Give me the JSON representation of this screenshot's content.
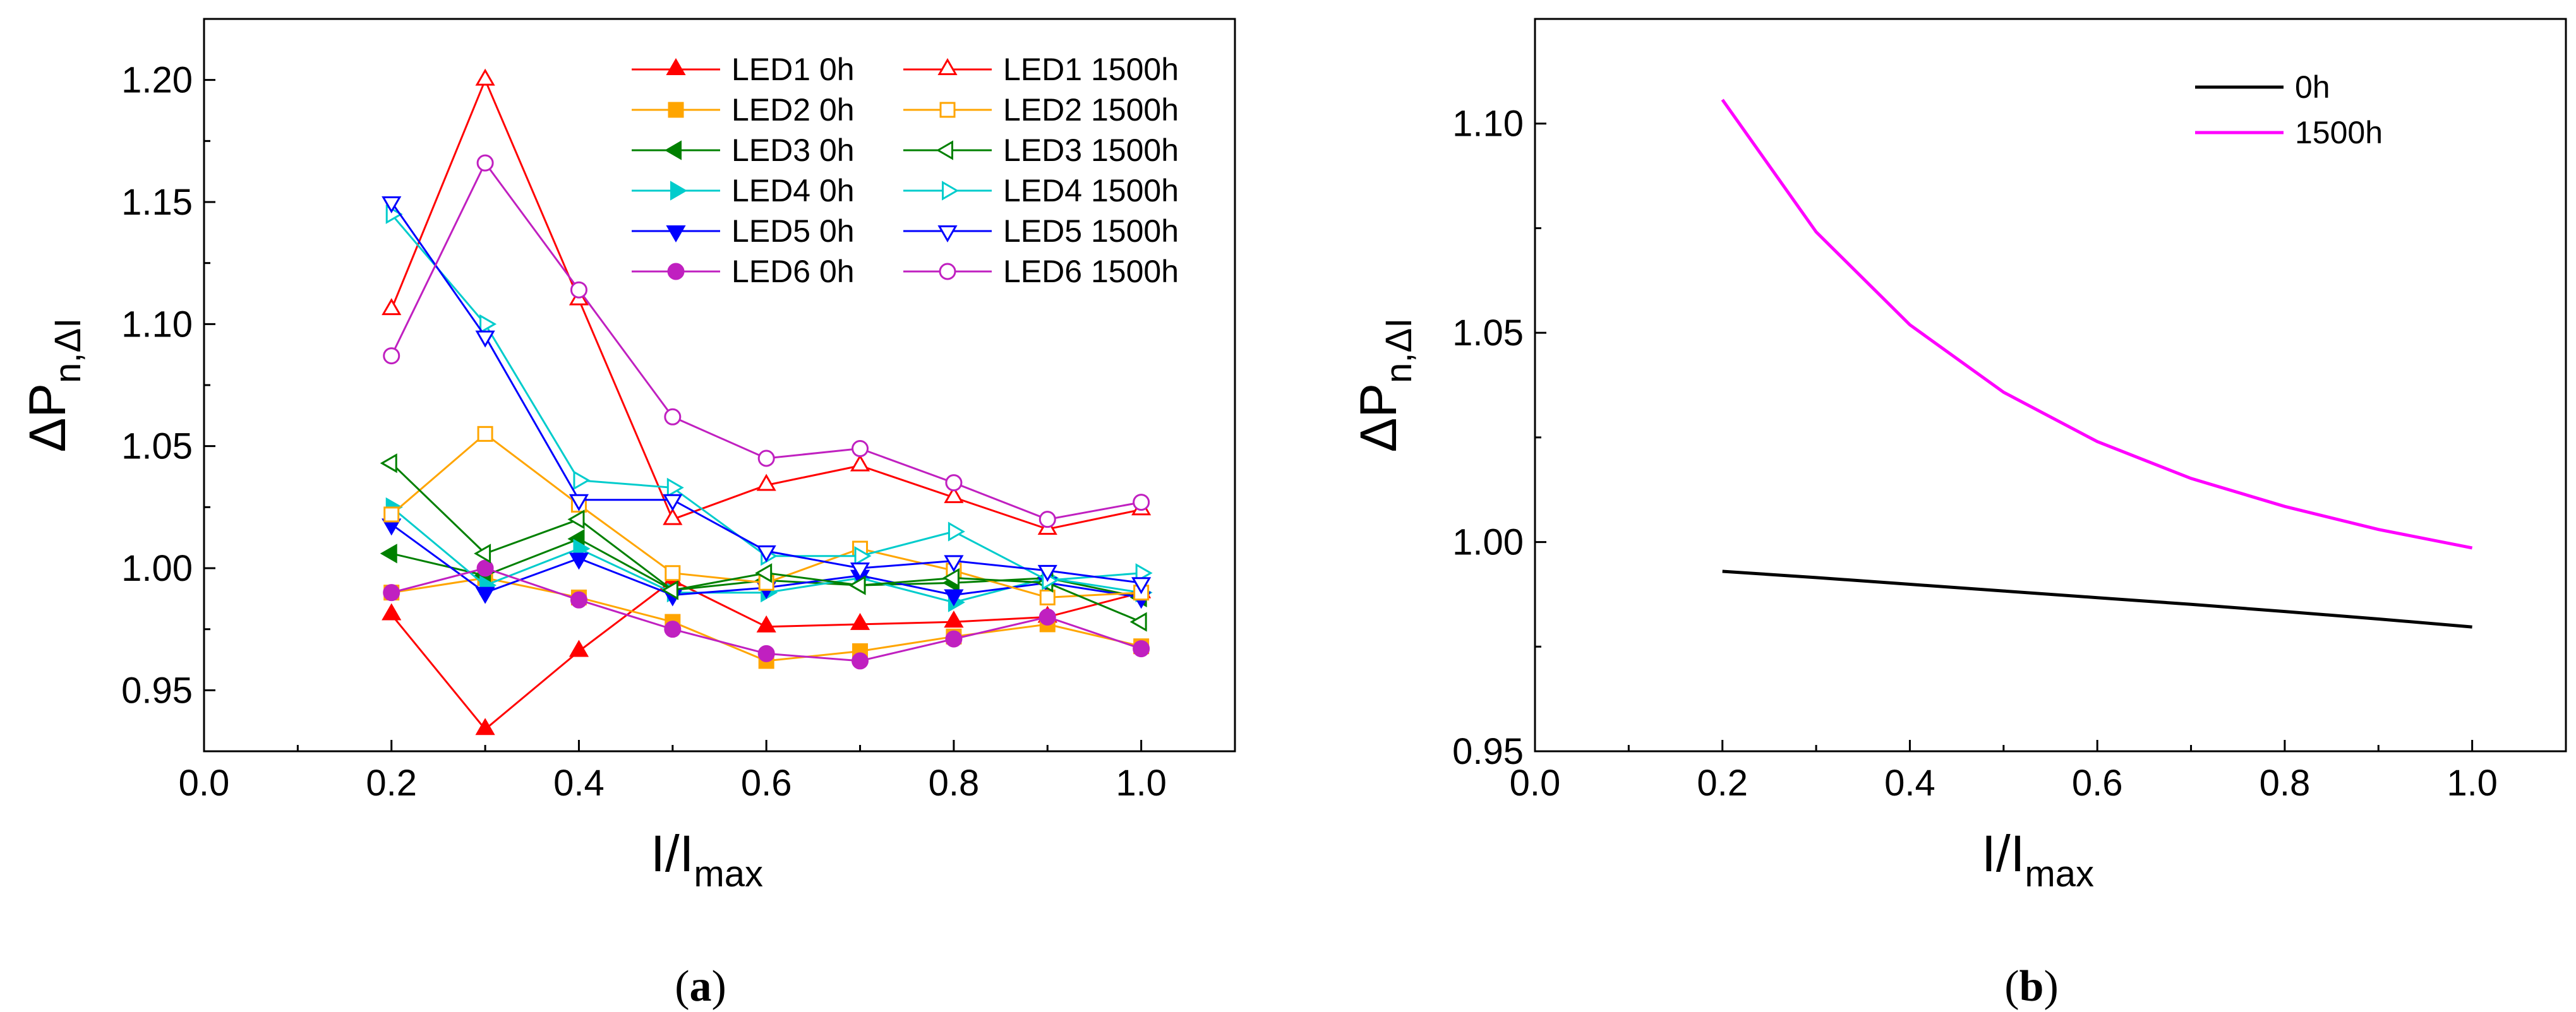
{
  "chart_data": [
    {
      "panel": "a",
      "type": "line",
      "caption": {
        "open": "(",
        "letter": "a",
        "close": ")"
      },
      "xlabel": {
        "main": "I/I",
        "sub": "max"
      },
      "ylabel": {
        "main": "ΔP",
        "sub": "n,ΔI"
      },
      "xlim": [
        0.0,
        1.1
      ],
      "ylim": [
        0.925,
        1.225
      ],
      "xticks": [
        0.0,
        0.2,
        0.4,
        0.6,
        0.8,
        1.0
      ],
      "xtick_labels": [
        "0.0",
        "0.2",
        "0.4",
        "0.6",
        "0.8",
        "1.0"
      ],
      "yticks": [
        0.95,
        1.0,
        1.05,
        1.1,
        1.15,
        1.2
      ],
      "ytick_labels": [
        "0.95",
        "1.00",
        "1.05",
        "1.10",
        "1.15",
        "1.20"
      ],
      "grid": false,
      "legend_position": "top-right",
      "x": [
        0.2,
        0.3,
        0.4,
        0.5,
        0.6,
        0.7,
        0.8,
        0.9,
        1.0
      ],
      "series": [
        {
          "name": "LED1 0h",
          "color": "#ff0000",
          "marker": "triangle-up",
          "filled": true,
          "values": [
            0.981,
            0.934,
            0.966,
            0.995,
            0.976,
            0.977,
            0.978,
            0.98,
            0.99
          ]
        },
        {
          "name": "LED2 0h",
          "color": "#ffa500",
          "marker": "square",
          "filled": true,
          "values": [
            0.99,
            0.996,
            0.988,
            0.978,
            0.962,
            0.966,
            0.972,
            0.977,
            0.968
          ]
        },
        {
          "name": "LED3 0h",
          "color": "#008000",
          "marker": "triangle-left",
          "filled": true,
          "values": [
            1.006,
            0.997,
            1.012,
            0.991,
            0.995,
            0.993,
            0.994,
            0.996,
            0.988
          ]
        },
        {
          "name": "LED4 0h",
          "color": "#00cccc",
          "marker": "triangle-right",
          "filled": true,
          "values": [
            1.025,
            0.993,
            1.008,
            0.99,
            0.99,
            0.996,
            0.986,
            0.996,
            0.99
          ]
        },
        {
          "name": "LED5 0h",
          "color": "#0000ff",
          "marker": "triangle-down",
          "filled": true,
          "values": [
            1.018,
            0.99,
            1.004,
            0.989,
            0.992,
            0.997,
            0.989,
            0.994,
            0.988
          ]
        },
        {
          "name": "LED6 0h",
          "color": "#c020c0",
          "marker": "circle",
          "filled": true,
          "values": [
            0.99,
            1.0,
            0.987,
            0.975,
            0.965,
            0.962,
            0.971,
            0.98,
            0.967
          ]
        },
        {
          "name": "LED1 1500h",
          "color": "#ff0000",
          "marker": "triangle-up",
          "filled": false,
          "values": [
            1.106,
            1.2,
            1.11,
            1.02,
            1.034,
            1.042,
            1.029,
            1.016,
            1.024
          ]
        },
        {
          "name": "LED2 1500h",
          "color": "#ffa500",
          "marker": "square",
          "filled": false,
          "values": [
            1.022,
            1.055,
            1.026,
            0.998,
            0.994,
            1.008,
            0.999,
            0.988,
            0.99
          ]
        },
        {
          "name": "LED3 1500h",
          "color": "#008000",
          "marker": "triangle-left",
          "filled": false,
          "values": [
            1.043,
            1.006,
            1.02,
            0.991,
            0.998,
            0.993,
            0.996,
            0.994,
            0.978
          ]
        },
        {
          "name": "LED4 1500h",
          "color": "#00cccc",
          "marker": "triangle-right",
          "filled": false,
          "values": [
            1.145,
            1.1,
            1.036,
            1.033,
            1.005,
            1.005,
            1.015,
            0.995,
            0.998
          ]
        },
        {
          "name": "LED5 1500h",
          "color": "#0000ff",
          "marker": "triangle-down",
          "filled": false,
          "values": [
            1.15,
            1.095,
            1.028,
            1.028,
            1.007,
            1.0,
            1.003,
            0.999,
            0.994
          ]
        },
        {
          "name": "LED6 1500h",
          "color": "#c020c0",
          "marker": "circle",
          "filled": false,
          "values": [
            1.087,
            1.166,
            1.114,
            1.062,
            1.045,
            1.049,
            1.035,
            1.02,
            1.027
          ]
        }
      ]
    },
    {
      "panel": "b",
      "type": "line",
      "caption": {
        "open": "(",
        "letter": "b",
        "close": ")"
      },
      "xlabel": {
        "main": "I/I",
        "sub": "max"
      },
      "ylabel": {
        "main": "ΔP",
        "sub": "n,ΔI"
      },
      "xlim": [
        0.0,
        1.1
      ],
      "ylim": [
        0.95,
        1.125
      ],
      "xticks": [
        0.0,
        0.2,
        0.4,
        0.6,
        0.8,
        1.0
      ],
      "xtick_labels": [
        "0.0",
        "0.2",
        "0.4",
        "0.6",
        "0.8",
        "1.0"
      ],
      "yticks": [
        0.95,
        1.0,
        1.05,
        1.1
      ],
      "ytick_labels": [
        "0.95",
        "1.00",
        "1.05",
        "1.10"
      ],
      "grid": false,
      "legend_position": "top-right",
      "x": [
        0.2,
        0.3,
        0.4,
        0.5,
        0.6,
        0.7,
        0.8,
        0.9,
        1.0
      ],
      "series": [
        {
          "name": "0h",
          "color": "#000000",
          "values": [
            0.993,
            0.9915,
            0.9899,
            0.9883,
            0.9867,
            0.9851,
            0.9834,
            0.9816,
            0.9797
          ]
        },
        {
          "name": "1500h",
          "color": "#ff00ff",
          "values": [
            1.1057,
            1.0741,
            1.0519,
            1.0358,
            1.024,
            1.0152,
            1.0085,
            1.003,
            0.9986
          ]
        }
      ]
    }
  ]
}
